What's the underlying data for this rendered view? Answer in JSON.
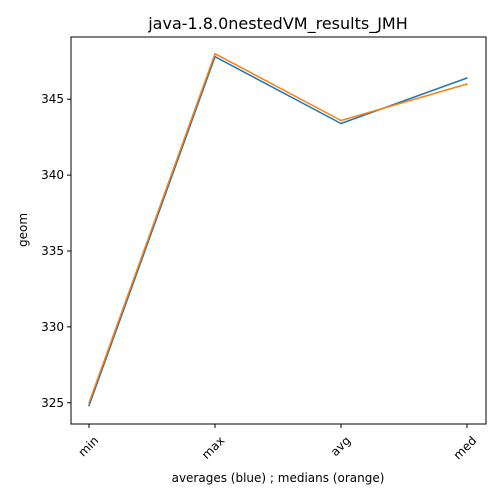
{
  "chart_data": {
    "type": "line",
    "title": "java-1.8.0nestedVM_results_JMH",
    "xlabel": "averages (blue) ; medians (orange)",
    "ylabel": "geom",
    "categories": [
      "min",
      "max",
      "avg",
      "med"
    ],
    "yticks": [
      325,
      330,
      335,
      340,
      345
    ],
    "ylim": [
      323.6,
      349.1
    ],
    "grid": false,
    "series": [
      {
        "values": [
          324.8,
          347.8,
          343.4,
          346.4
        ],
        "color": "#1f77b4"
      },
      {
        "values": [
          325.0,
          348.0,
          343.6,
          346.0
        ],
        "color": "#ff7f0e"
      }
    ]
  }
}
